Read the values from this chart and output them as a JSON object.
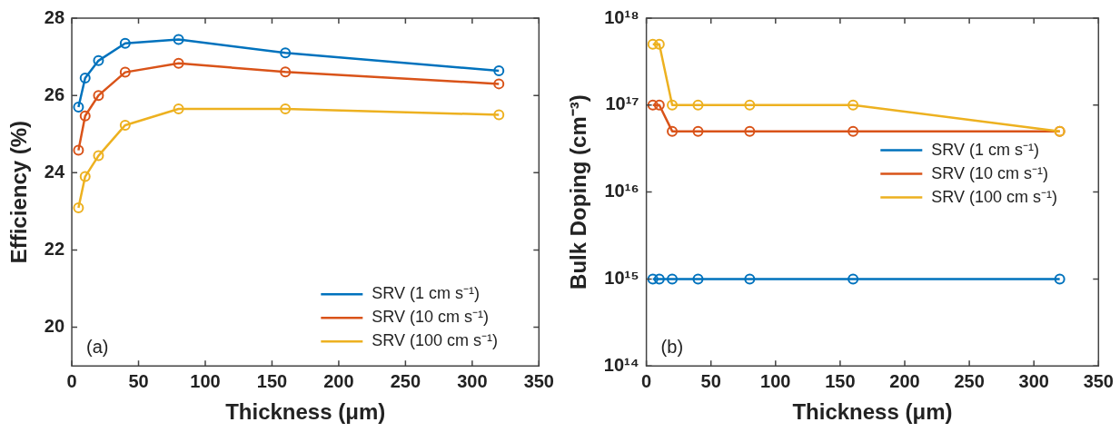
{
  "chart_data": [
    {
      "type": "line",
      "xlabel": "Thickness (μm)",
      "ylabel": "Efficiency (%)",
      "x": [
        5,
        10,
        20,
        40,
        80,
        160,
        320
      ],
      "series": [
        {
          "name": "SRV (1 cm s⁻¹)",
          "color": "#0072bd",
          "values": [
            25.7,
            26.45,
            26.9,
            27.35,
            27.45,
            27.1,
            26.64
          ]
        },
        {
          "name": "SRV (10 cm s⁻¹)",
          "color": "#d95319",
          "values": [
            24.58,
            25.47,
            26.0,
            26.6,
            26.83,
            26.61,
            26.3
          ]
        },
        {
          "name": "SRV (100 cm s⁻¹)",
          "color": "#edb120",
          "values": [
            23.09,
            23.9,
            24.44,
            25.23,
            25.65,
            25.65,
            25.5
          ]
        }
      ],
      "xlim": [
        0,
        350
      ],
      "xticks": [
        0,
        50,
        100,
        150,
        200,
        250,
        300,
        350
      ],
      "ylim": [
        19,
        28
      ],
      "yticks": [
        20,
        22,
        24,
        26,
        28
      ],
      "grid": false,
      "legend": "bottom right",
      "marker": "circle",
      "line_style": "solid",
      "annotations": [
        "(a)"
      ]
    },
    {
      "type": "line",
      "xlabel": "Thickness (μm)",
      "ylabel": "Bulk Doping (cm⁻³)",
      "x": [
        5,
        10,
        20,
        40,
        80,
        160,
        320
      ],
      "series": [
        {
          "name": "SRV (1 cm s⁻¹)",
          "color": "#0072bd",
          "values": [
            1000000000000000.0,
            1000000000000000.0,
            1000000000000000.0,
            1000000000000000.0,
            1000000000000000.0,
            1000000000000000.0,
            1000000000000000.0
          ]
        },
        {
          "name": "SRV (10 cm s⁻¹)",
          "color": "#d95319",
          "values": [
            1e+17,
            1e+17,
            5e+16,
            5e+16,
            5e+16,
            5e+16,
            5e+16
          ]
        },
        {
          "name": "SRV (100 cm s⁻¹)",
          "color": "#edb120",
          "values": [
            5e+17,
            5e+17,
            1e+17,
            1e+17,
            1e+17,
            1e+17,
            5e+16
          ]
        }
      ],
      "xlim": [
        0,
        350
      ],
      "xticks": [
        0,
        50,
        100,
        150,
        200,
        250,
        300,
        350
      ],
      "log": "y",
      "ylim": [
        100000000000000.0,
        1e+18
      ],
      "yticks": [
        {
          "value": 100000000000000.0,
          "label": "10¹⁴"
        },
        {
          "value": 1000000000000000.0,
          "label": "10¹⁵"
        },
        {
          "value": 1e+16,
          "label": "10¹⁶"
        },
        {
          "value": 1e+17,
          "label": "10¹⁷"
        },
        {
          "value": 1e+18,
          "label": "10¹⁸"
        }
      ],
      "grid": false,
      "legend": "right",
      "marker": "circle",
      "line_style": "solid",
      "annotations": [
        "(b)"
      ]
    }
  ]
}
